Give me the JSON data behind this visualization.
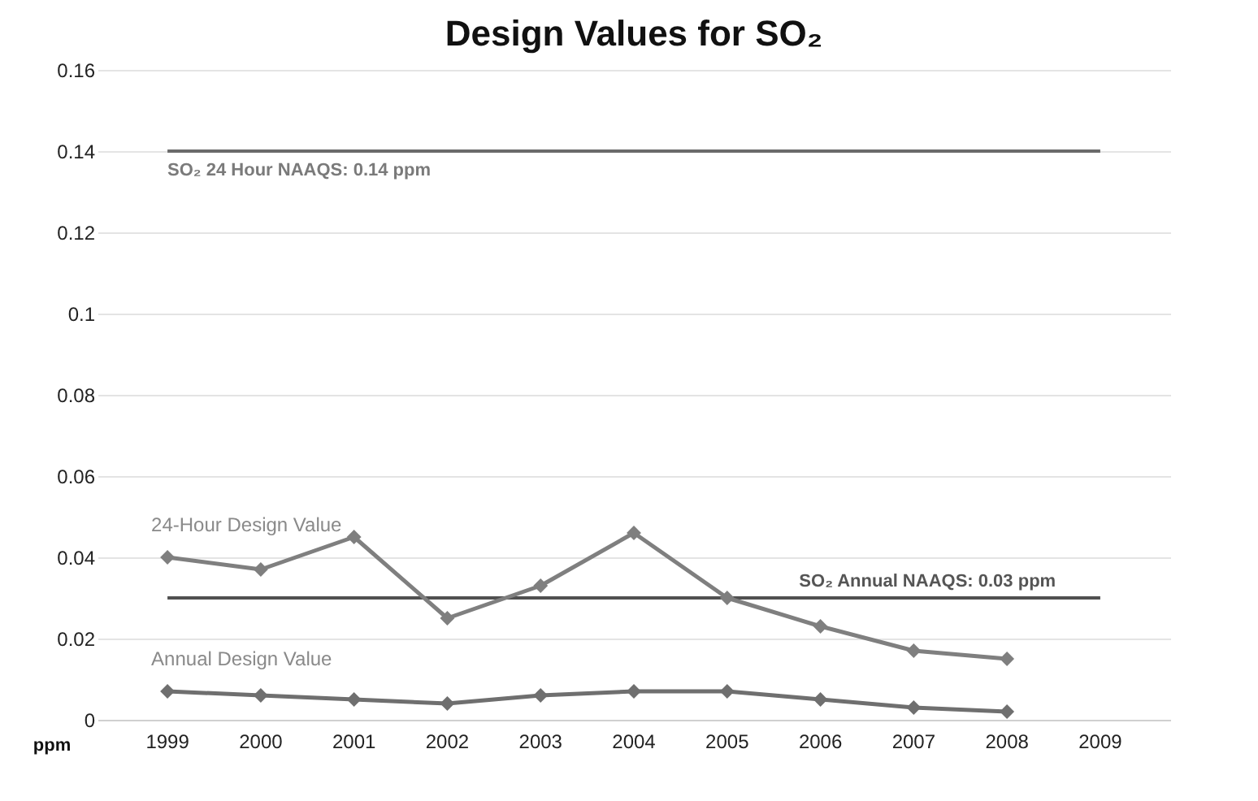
{
  "chart_data": {
    "type": "line",
    "title": "Design Values for SO₂",
    "ylabel": "ppm",
    "categories": [
      "1999",
      "2000",
      "2001",
      "2002",
      "2003",
      "2004",
      "2005",
      "2006",
      "2007",
      "2008",
      "2009"
    ],
    "series": [
      {
        "name": "24-Hour Design Value",
        "color": "#7f7f7f",
        "values": [
          0.04,
          0.037,
          0.045,
          0.025,
          0.033,
          0.046,
          0.03,
          0.023,
          0.017,
          0.015,
          null
        ]
      },
      {
        "name": "Annual Design Value",
        "color": "#6f6f6f",
        "values": [
          0.007,
          0.006,
          0.005,
          0.004,
          0.006,
          0.007,
          0.007,
          0.005,
          0.003,
          0.002,
          null
        ]
      }
    ],
    "ref_lines": [
      {
        "axis": "y",
        "value": 0.14,
        "label": "SO₂ 24 Hour NAAQS: 0.14 ppm",
        "color": "#6a6a6a"
      },
      {
        "axis": "y",
        "value": 0.03,
        "label": "SO₂ Annual NAAQS: 0.03 ppm",
        "color": "#505050"
      }
    ],
    "ylim": [
      0,
      0.16
    ],
    "yticks": [
      0,
      0.02,
      0.04,
      0.06,
      0.08,
      0.1,
      0.12,
      0.14,
      0.16
    ],
    "grid": "y",
    "marker": "diamond",
    "line_style": "solid"
  }
}
